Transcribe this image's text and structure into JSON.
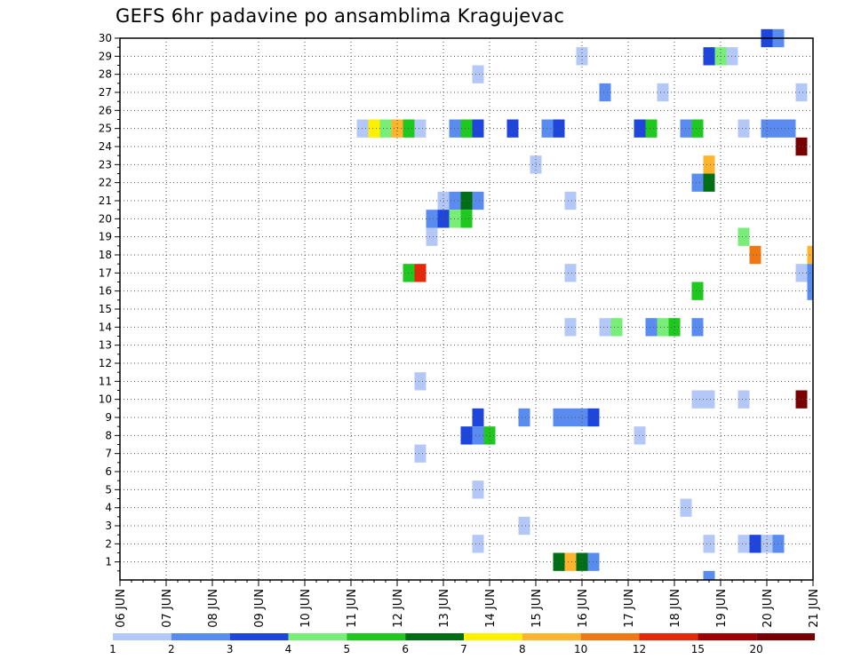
{
  "chart_data": {
    "type": "heatmap",
    "title": "GEFS 6hr padavine po ansamblima Kragujevac",
    "xlabel": "",
    "ylabel": "",
    "x_tick_labels": [
      "06 JUN",
      "07 JUN",
      "08 JUN",
      "09 JUN",
      "10 JUN",
      "11 JUN",
      "12 JUN",
      "13 JUN",
      "14 JUN",
      "15 JUN",
      "16 JUN",
      "17 JUN",
      "18 JUN",
      "19 JUN",
      "20 JUN",
      "21 JUN"
    ],
    "x_range": [
      "06 JUN 00Z",
      "21 JUN 00Z"
    ],
    "y_tick_labels": [
      "1",
      "2",
      "3",
      "4",
      "5",
      "6",
      "7",
      "8",
      "9",
      "10",
      "11",
      "12",
      "13",
      "14",
      "15",
      "16",
      "17",
      "18",
      "19",
      "20",
      "21",
      "22",
      "23",
      "24",
      "25",
      "26",
      "27",
      "28",
      "29",
      "30"
    ],
    "y_range": [
      0,
      30
    ],
    "grid": true,
    "legend": {
      "placement": "bottom",
      "labels": [
        "1",
        "2",
        "3",
        "4",
        "5",
        "6",
        "7",
        "8",
        "10",
        "12",
        "15",
        "20"
      ],
      "colors": [
        "#b4c8f8",
        "#5a8cf0",
        "#1e46dc",
        "#78ee78",
        "#1ec81e",
        "#006e14",
        "#fff000",
        "#ffb42d",
        "#f07814",
        "#e6280a",
        "#a00000",
        "#780000"
      ]
    },
    "color_bins": [
      "1-2",
      "2-3",
      "3-4",
      "4-5",
      "5-6",
      "6-7",
      "7-8",
      "8-10",
      "10-12",
      "12-15",
      "15-20",
      ">20"
    ],
    "cells": [
      {
        "x": "20 JUN 00Z",
        "y": 30,
        "bin": 2
      },
      {
        "x": "20 JUN 06Z",
        "y": 30,
        "bin": 1
      },
      {
        "x": "16 JUN 00Z",
        "y": 29,
        "bin": 0
      },
      {
        "x": "18 JUN 18Z",
        "y": 29,
        "bin": 2
      },
      {
        "x": "19 JUN 00Z",
        "y": 29,
        "bin": 3
      },
      {
        "x": "19 JUN 06Z",
        "y": 29,
        "bin": 0
      },
      {
        "x": "13 JUN 18Z",
        "y": 28,
        "bin": 0
      },
      {
        "x": "16 JUN 12Z",
        "y": 27,
        "bin": 1
      },
      {
        "x": "17 JUN 18Z",
        "y": 27,
        "bin": 0
      },
      {
        "x": "20 JUN 18Z",
        "y": 27,
        "bin": 0
      },
      {
        "x": "11 JUN 06Z",
        "y": 25,
        "bin": 0
      },
      {
        "x": "11 JUN 12Z",
        "y": 25,
        "bin": 6
      },
      {
        "x": "11 JUN 18Z",
        "y": 25,
        "bin": 3
      },
      {
        "x": "12 JUN 00Z",
        "y": 25,
        "bin": 7
      },
      {
        "x": "12 JUN 06Z",
        "y": 25,
        "bin": 4
      },
      {
        "x": "12 JUN 12Z",
        "y": 25,
        "bin": 0
      },
      {
        "x": "13 JUN 06Z",
        "y": 25,
        "bin": 1
      },
      {
        "x": "13 JUN 12Z",
        "y": 25,
        "bin": 4
      },
      {
        "x": "13 JUN 18Z",
        "y": 25,
        "bin": 2
      },
      {
        "x": "14 JUN 12Z",
        "y": 25,
        "bin": 2
      },
      {
        "x": "15 JUN 06Z",
        "y": 25,
        "bin": 1
      },
      {
        "x": "15 JUN 12Z",
        "y": 25,
        "bin": 2
      },
      {
        "x": "17 JUN 06Z",
        "y": 25,
        "bin": 2
      },
      {
        "x": "17 JUN 12Z",
        "y": 25,
        "bin": 4
      },
      {
        "x": "18 JUN 06Z",
        "y": 25,
        "bin": 1
      },
      {
        "x": "18 JUN 12Z",
        "y": 25,
        "bin": 4
      },
      {
        "x": "19 JUN 12Z",
        "y": 25,
        "bin": 0
      },
      {
        "x": "20 JUN 00Z",
        "y": 25,
        "bin": 1
      },
      {
        "x": "20 JUN 06Z",
        "y": 25,
        "bin": 1
      },
      {
        "x": "20 JUN 12Z",
        "y": 25,
        "bin": 1
      },
      {
        "x": "20 JUN 18Z",
        "y": 24,
        "bin": 11
      },
      {
        "x": "15 JUN 00Z",
        "y": 23,
        "bin": 0
      },
      {
        "x": "18 JUN 18Z",
        "y": 23,
        "bin": 7
      },
      {
        "x": "18 JUN 12Z",
        "y": 22,
        "bin": 1
      },
      {
        "x": "18 JUN 18Z",
        "y": 22,
        "bin": 5
      },
      {
        "x": "13 JUN 00Z",
        "y": 21,
        "bin": 0
      },
      {
        "x": "13 JUN 06Z",
        "y": 21,
        "bin": 1
      },
      {
        "x": "13 JUN 12Z",
        "y": 21,
        "bin": 5
      },
      {
        "x": "13 JUN 18Z",
        "y": 21,
        "bin": 1
      },
      {
        "x": "15 JUN 18Z",
        "y": 21,
        "bin": 0
      },
      {
        "x": "12 JUN 18Z",
        "y": 20,
        "bin": 1
      },
      {
        "x": "13 JUN 00Z",
        "y": 20,
        "bin": 2
      },
      {
        "x": "13 JUN 06Z",
        "y": 20,
        "bin": 3
      },
      {
        "x": "13 JUN 12Z",
        "y": 20,
        "bin": 4
      },
      {
        "x": "19 JUN 12Z",
        "y": 19,
        "bin": 3
      },
      {
        "x": "12 JUN 18Z",
        "y": 19,
        "bin": 0
      },
      {
        "x": "19 JUN 18Z",
        "y": 18,
        "bin": 8
      },
      {
        "x": "21 JUN 00Z",
        "y": 18,
        "bin": 7
      },
      {
        "x": "12 JUN 06Z",
        "y": 17,
        "bin": 4
      },
      {
        "x": "12 JUN 12Z",
        "y": 17,
        "bin": 9
      },
      {
        "x": "15 JUN 18Z",
        "y": 17,
        "bin": 0
      },
      {
        "x": "20 JUN 18Z",
        "y": 17,
        "bin": 0
      },
      {
        "x": "21 JUN 00Z",
        "y": 17,
        "bin": 1
      },
      {
        "x": "18 JUN 12Z",
        "y": 16,
        "bin": 4
      },
      {
        "x": "21 JUN 00Z",
        "y": 16,
        "bin": 1
      },
      {
        "x": "15 JUN 18Z",
        "y": 14,
        "bin": 0
      },
      {
        "x": "16 JUN 12Z",
        "y": 14,
        "bin": 0
      },
      {
        "x": "16 JUN 18Z",
        "y": 14,
        "bin": 3
      },
      {
        "x": "17 JUN 12Z",
        "y": 14,
        "bin": 1
      },
      {
        "x": "17 JUN 18Z",
        "y": 14,
        "bin": 3
      },
      {
        "x": "18 JUN 00Z",
        "y": 14,
        "bin": 4
      },
      {
        "x": "18 JUN 12Z",
        "y": 14,
        "bin": 1
      },
      {
        "x": "12 JUN 12Z",
        "y": 11,
        "bin": 0
      },
      {
        "x": "18 JUN 12Z",
        "y": 10,
        "bin": 0
      },
      {
        "x": "18 JUN 18Z",
        "y": 10,
        "bin": 0
      },
      {
        "x": "19 JUN 12Z",
        "y": 10,
        "bin": 0
      },
      {
        "x": "20 JUN 18Z",
        "y": 10,
        "bin": 11
      },
      {
        "x": "13 JUN 18Z",
        "y": 9,
        "bin": 2
      },
      {
        "x": "14 JUN 18Z",
        "y": 9,
        "bin": 1
      },
      {
        "x": "15 JUN 12Z",
        "y": 9,
        "bin": 1
      },
      {
        "x": "15 JUN 18Z",
        "y": 9,
        "bin": 1
      },
      {
        "x": "16 JUN 00Z",
        "y": 9,
        "bin": 1
      },
      {
        "x": "16 JUN 06Z",
        "y": 9,
        "bin": 2
      },
      {
        "x": "13 JUN 12Z",
        "y": 8,
        "bin": 2
      },
      {
        "x": "13 JUN 18Z",
        "y": 8,
        "bin": 1
      },
      {
        "x": "14 JUN 00Z",
        "y": 8,
        "bin": 4
      },
      {
        "x": "17 JUN 06Z",
        "y": 8,
        "bin": 0
      },
      {
        "x": "12 JUN 12Z",
        "y": 7,
        "bin": 0
      },
      {
        "x": "13 JUN 18Z",
        "y": 5,
        "bin": 0
      },
      {
        "x": "18 JUN 06Z",
        "y": 4,
        "bin": 0
      },
      {
        "x": "14 JUN 18Z",
        "y": 3,
        "bin": 0
      },
      {
        "x": "13 JUN 18Z",
        "y": 2,
        "bin": 0
      },
      {
        "x": "18 JUN 18Z",
        "y": 2,
        "bin": 0
      },
      {
        "x": "19 JUN 12Z",
        "y": 2,
        "bin": 0
      },
      {
        "x": "19 JUN 18Z",
        "y": 2,
        "bin": 2
      },
      {
        "x": "20 JUN 00Z",
        "y": 2,
        "bin": 0
      },
      {
        "x": "20 JUN 06Z",
        "y": 2,
        "bin": 1
      },
      {
        "x": "15 JUN 12Z",
        "y": 1,
        "bin": 5
      },
      {
        "x": "15 JUN 18Z",
        "y": 1,
        "bin": 7
      },
      {
        "x": "16 JUN 00Z",
        "y": 1,
        "bin": 5
      },
      {
        "x": "16 JUN 06Z",
        "y": 1,
        "bin": 1
      },
      {
        "x": "18 JUN 18Z",
        "y": 0,
        "bin": 1
      }
    ]
  }
}
